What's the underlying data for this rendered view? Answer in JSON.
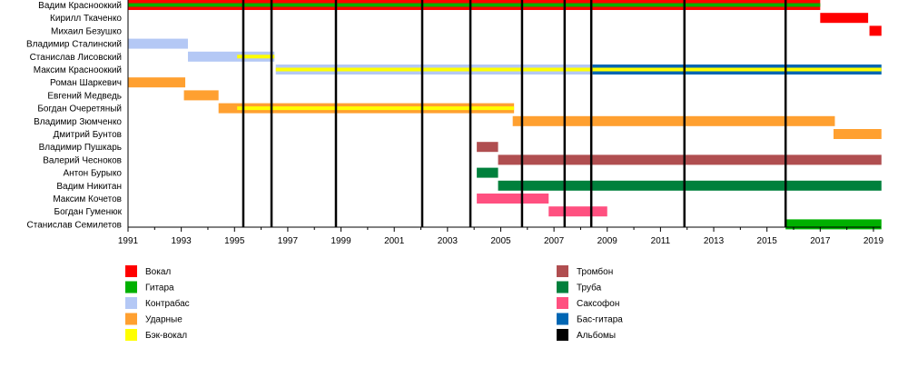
{
  "chart_data": {
    "type": "timeline",
    "xlim": [
      1991,
      2019.3
    ],
    "x_ticks": [
      1991,
      1993,
      1995,
      1997,
      1999,
      2001,
      2003,
      2005,
      2007,
      2009,
      2011,
      2013,
      2015,
      2017,
      2019
    ],
    "roles": {
      "vocal": {
        "label": "Вокал",
        "color": "#ff0000"
      },
      "guitar": {
        "label": "Гитара",
        "color": "#00b000"
      },
      "contrabass": {
        "label": "Контрабас",
        "color": "#b4c8f5"
      },
      "drums": {
        "label": "Ударные",
        "color": "#ffa030"
      },
      "backvocal": {
        "label": "Бэк-вокал",
        "color": "#ffff00"
      },
      "trombone": {
        "label": "Тромбон",
        "color": "#b04e50"
      },
      "trumpet": {
        "label": "Труба",
        "color": "#00803c"
      },
      "sax": {
        "label": "Саксофон",
        "color": "#ff5080"
      },
      "bass": {
        "label": "Бас-гитара",
        "color": "#0066b3"
      },
      "albums": {
        "label": "Альбомы",
        "color": "#000000"
      }
    },
    "legend_left": [
      "vocal",
      "guitar",
      "contrabass",
      "drums",
      "backvocal"
    ],
    "legend_right": [
      "trombone",
      "trumpet",
      "sax",
      "bass",
      "albums"
    ],
    "members": [
      {
        "name": "Вадим Краснооккий",
        "bars": [
          {
            "role": "vocal",
            "from": 1991,
            "to": 2017.0
          }
        ],
        "stripes": [
          {
            "role": "guitar",
            "from": 1991,
            "to": 2017.0
          }
        ]
      },
      {
        "name": "Кирилл Ткаченко",
        "bars": [
          {
            "role": "vocal",
            "from": 2017.0,
            "to": 2018.8
          }
        ],
        "stripes": []
      },
      {
        "name": "Михаил Безушко",
        "bars": [
          {
            "role": "vocal",
            "from": 2018.85,
            "to": 2019.3
          }
        ],
        "stripes": []
      },
      {
        "name": "Владимир Сталинский",
        "bars": [
          {
            "role": "contrabass",
            "from": 1991,
            "to": 1993.25
          }
        ],
        "stripes": []
      },
      {
        "name": "Станислав Лисовский",
        "bars": [
          {
            "role": "contrabass",
            "from": 1993.25,
            "to": 1996.5
          }
        ],
        "stripes": [
          {
            "role": "backvocal",
            "from": 1995.1,
            "to": 1996.5
          }
        ]
      },
      {
        "name": "Максим Краснооккий",
        "bars": [
          {
            "role": "contrabass",
            "from": 1996.55,
            "to": 2008.45
          },
          {
            "role": "bass",
            "from": 2008.45,
            "to": 2019.3
          }
        ],
        "stripes": [
          {
            "role": "backvocal",
            "from": 1996.55,
            "to": 2019.3
          }
        ]
      },
      {
        "name": "Роман Шаркевич",
        "bars": [
          {
            "role": "drums",
            "from": 1991,
            "to": 1993.15
          }
        ],
        "stripes": []
      },
      {
        "name": "Евгений Медведь",
        "bars": [
          {
            "role": "drums",
            "from": 1993.1,
            "to": 1994.4
          }
        ],
        "stripes": []
      },
      {
        "name": "Богдан Очеретяный",
        "bars": [
          {
            "role": "drums",
            "from": 1994.4,
            "to": 2005.5
          }
        ],
        "stripes": [
          {
            "role": "backvocal",
            "from": 1995.1,
            "to": 2005.5
          }
        ]
      },
      {
        "name": "Владимир Зюмченко",
        "bars": [
          {
            "role": "drums",
            "from": 2005.45,
            "to": 2017.55
          }
        ],
        "stripes": []
      },
      {
        "name": "Дмитрий Бунтов",
        "bars": [
          {
            "role": "drums",
            "from": 2017.5,
            "to": 2019.3
          }
        ],
        "stripes": []
      },
      {
        "name": "Владимир Пушкарь",
        "bars": [
          {
            "role": "trombone",
            "from": 2004.1,
            "to": 2004.9
          }
        ],
        "stripes": []
      },
      {
        "name": "Валерий Чесноков",
        "bars": [
          {
            "role": "trombone",
            "from": 2004.9,
            "to": 2019.3
          }
        ],
        "stripes": []
      },
      {
        "name": "Антон Бурыко",
        "bars": [
          {
            "role": "trumpet",
            "from": 2004.1,
            "to": 2004.9
          }
        ],
        "stripes": []
      },
      {
        "name": "Вадим Никитан",
        "bars": [
          {
            "role": "trumpet",
            "from": 2004.9,
            "to": 2019.3
          }
        ],
        "stripes": []
      },
      {
        "name": "Максим Кочетов",
        "bars": [
          {
            "role": "sax",
            "from": 2004.1,
            "to": 2006.8
          }
        ],
        "stripes": []
      },
      {
        "name": "Богдан Гуменюк",
        "bars": [
          {
            "role": "sax",
            "from": 2006.8,
            "to": 2009.0
          }
        ],
        "stripes": []
      },
      {
        "name": "Станислав Семилетов",
        "bars": [
          {
            "role": "guitar",
            "from": 2015.7,
            "to": 2019.3
          }
        ],
        "stripes": []
      }
    ],
    "albums": [
      1995.33,
      1996.39,
      1998.81,
      2002.05,
      2003.86,
      2005.8,
      2007.4,
      2008.4,
      2011.9,
      2015.7
    ]
  }
}
